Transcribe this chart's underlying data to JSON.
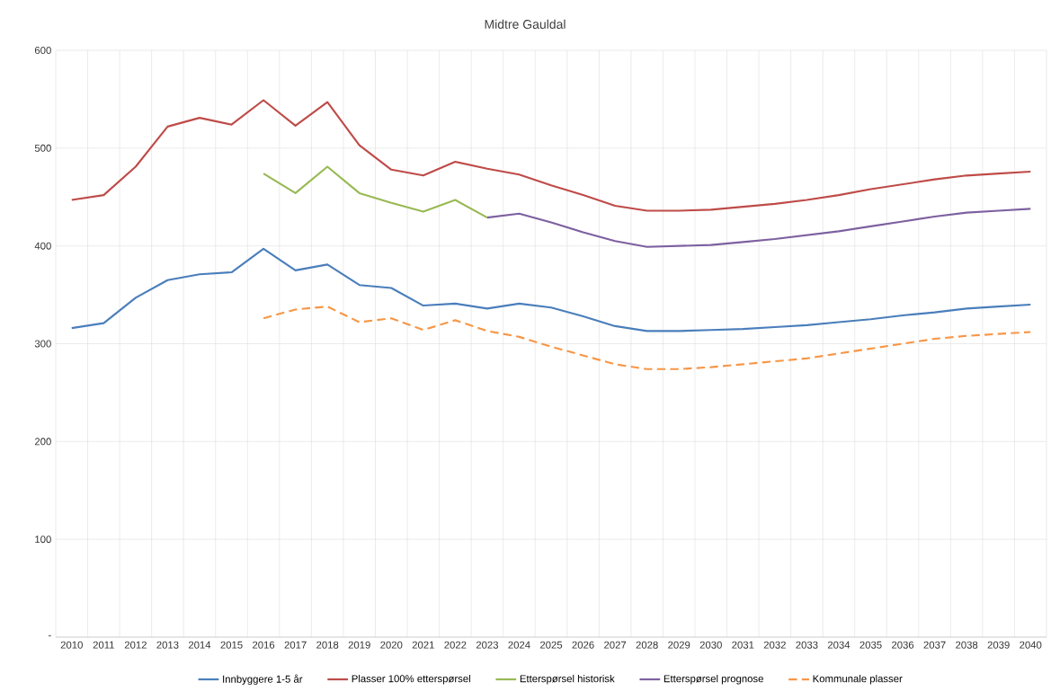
{
  "chart_data": {
    "type": "line",
    "title": "Midtre Gauldal",
    "categories": [
      "2010",
      "2011",
      "2012",
      "2013",
      "2014",
      "2015",
      "2016",
      "2017",
      "2018",
      "2019",
      "2020",
      "2021",
      "2022",
      "2023",
      "2024",
      "2025",
      "2026",
      "2027",
      "2028",
      "2029",
      "2030",
      "2031",
      "2032",
      "2033",
      "2034",
      "2035",
      "2036",
      "2037",
      "2038",
      "2039",
      "2040"
    ],
    "series": [
      {
        "name": "Innbyggere 1-5 år",
        "color": "#4a7ebb",
        "values": [
          316,
          321,
          347,
          365,
          371,
          373,
          397,
          375,
          381,
          360,
          357,
          339,
          341,
          336,
          341,
          337,
          328,
          318,
          313,
          313,
          314,
          315,
          317,
          319,
          322,
          325,
          329,
          332,
          336,
          338,
          340
        ]
      },
      {
        "name": "Plasser 100% etterspørsel",
        "color": "#be4b48",
        "values": [
          447,
          452,
          481,
          522,
          531,
          524,
          549,
          523,
          547,
          503,
          478,
          472,
          486,
          479,
          473,
          462,
          452,
          441,
          436,
          436,
          437,
          440,
          443,
          447,
          452,
          458,
          463,
          468,
          472,
          474,
          476
        ]
      },
      {
        "name": "Etterspørsel historisk",
        "color": "#98b954",
        "values": [
          null,
          null,
          null,
          null,
          null,
          null,
          474,
          454,
          481,
          454,
          444,
          435,
          447,
          429,
          null,
          null,
          null,
          null,
          null,
          null,
          null,
          null,
          null,
          null,
          null,
          null,
          null,
          null,
          null,
          null,
          null
        ]
      },
      {
        "name": "Etterspørsel prognose",
        "color": "#7d60a0",
        "values": [
          null,
          null,
          null,
          null,
          null,
          null,
          null,
          null,
          null,
          null,
          null,
          null,
          null,
          429,
          433,
          424,
          414,
          405,
          399,
          400,
          401,
          404,
          407,
          411,
          415,
          420,
          425,
          430,
          434,
          436,
          438
        ]
      },
      {
        "name": "Kommunale plasser",
        "color": "#f79646",
        "line_style": "dashed",
        "values": [
          null,
          null,
          null,
          null,
          null,
          null,
          326,
          335,
          338,
          322,
          326,
          314,
          324,
          313,
          307,
          297,
          288,
          279,
          274,
          274,
          276,
          279,
          282,
          285,
          290,
          295,
          300,
          305,
          308,
          310,
          312
        ]
      }
    ],
    "ylim": [
      0,
      600
    ],
    "yticks": [
      {
        "value": 0,
        "label": "-"
      },
      100,
      200,
      300,
      400,
      500,
      600
    ],
    "grid": true,
    "legend": "bottom",
    "marker": "none",
    "line_style": "solid"
  }
}
